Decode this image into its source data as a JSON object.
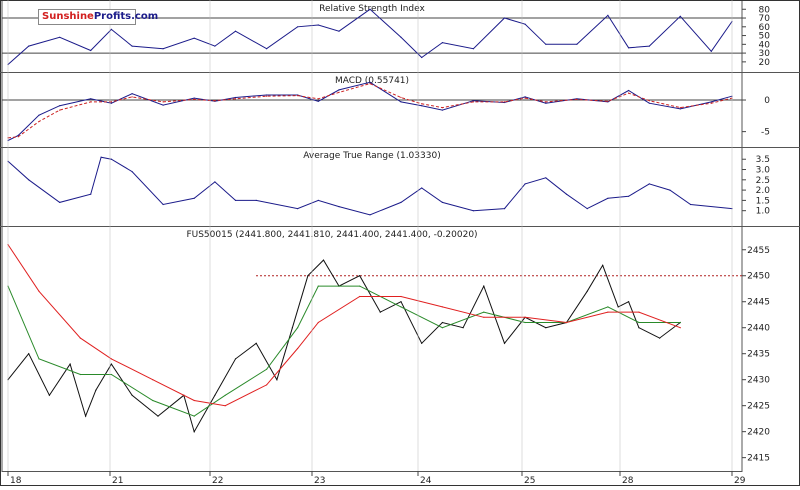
{
  "brand": {
    "part1": "Sunshine",
    "part2": "Profits.com"
  },
  "chart_data": [
    {
      "type": "line",
      "title": "Relative Strength Index",
      "ylim": [
        13,
        86
      ],
      "y_ticks": [
        20,
        30,
        40,
        50,
        60,
        70,
        80
      ],
      "reference_lines": [
        30,
        70
      ],
      "series": [
        {
          "color": "#1b1b8a",
          "x": [
            0,
            0.2,
            0.5,
            0.8,
            1,
            1.2,
            1.5,
            1.8,
            2,
            2.2,
            2.5,
            2.8,
            3,
            3.2,
            3.5,
            3.8,
            4,
            4.2,
            4.5,
            4.8,
            5,
            5.2,
            5.5,
            5.8,
            6,
            6.2,
            6.5,
            6.8,
            7
          ],
          "values": [
            17,
            38,
            48,
            33,
            57,
            38,
            35,
            47,
            38,
            55,
            35,
            60,
            62,
            55,
            80,
            48,
            25,
            42,
            35,
            70,
            63,
            40,
            40,
            73,
            36,
            38,
            72,
            32,
            66
          ]
        }
      ]
    },
    {
      "type": "line",
      "title": "MACD (0.55741)",
      "ylim": [
        -6.8,
        3.8
      ],
      "y_ticks": [
        0,
        -5
      ],
      "reference_lines": [
        0
      ],
      "series": [
        {
          "color": "#1b1b8a",
          "x": [
            0,
            0.1,
            0.3,
            0.5,
            0.8,
            1,
            1.2,
            1.5,
            1.8,
            2,
            2.2,
            2.5,
            2.8,
            3,
            3.2,
            3.5,
            3.8,
            4,
            4.2,
            4.5,
            4.8,
            5,
            5.2,
            5.5,
            5.8,
            6,
            6.2,
            6.5,
            6.8,
            7
          ],
          "values": [
            -6.4,
            -5.6,
            -2.4,
            -0.9,
            0.2,
            -0.5,
            1,
            -0.8,
            0.3,
            -0.2,
            0.4,
            0.8,
            0.8,
            -0.2,
            1.6,
            2.8,
            -0.3,
            -0.9,
            -1.6,
            -0.1,
            -0.4,
            0.5,
            -0.5,
            0.2,
            -0.3,
            1.5,
            -0.5,
            -1.4,
            -0.3,
            0.6
          ]
        },
        {
          "color": "#cc2222",
          "x": [
            0,
            0.1,
            0.3,
            0.5,
            0.8,
            1,
            1.2,
            1.5,
            1.8,
            2,
            2.2,
            2.5,
            2.8,
            3,
            3.2,
            3.5,
            3.8,
            4,
            4.2,
            4.5,
            4.8,
            5,
            5.2,
            5.5,
            5.8,
            6,
            6.2,
            6.5,
            6.8,
            7
          ],
          "values": [
            -6,
            -5.8,
            -3.4,
            -1.6,
            -0.3,
            -0.3,
            0.5,
            -0.3,
            0.1,
            -0.1,
            0.2,
            0.6,
            0.7,
            0.2,
            1.2,
            2.6,
            0.4,
            -0.6,
            -1.2,
            -0.3,
            -0.3,
            0.3,
            -0.3,
            0.1,
            -0.2,
            1.1,
            -0.1,
            -1.2,
            -0.5,
            0.3
          ]
        }
      ]
    },
    {
      "type": "line",
      "title": "Average True Range (1.03330)",
      "ylim": [
        0.45,
        3.9
      ],
      "y_ticks": [
        1.0,
        1.5,
        2.0,
        2.5,
        3.0,
        3.5
      ],
      "series": [
        {
          "color": "#1b1b8a",
          "x": [
            0,
            0.2,
            0.5,
            0.8,
            0.9,
            1,
            1.2,
            1.5,
            1.8,
            2,
            2.2,
            2.4,
            2.8,
            3,
            3.2,
            3.5,
            3.8,
            4,
            4.2,
            4.5,
            4.8,
            5,
            5.2,
            5.4,
            5.6,
            5.8,
            6,
            6.2,
            6.4,
            6.6,
            7
          ],
          "values": [
            3.4,
            2.5,
            1.4,
            1.8,
            3.6,
            3.5,
            2.9,
            1.3,
            1.6,
            2.4,
            1.5,
            1.5,
            1.1,
            1.5,
            1.2,
            0.8,
            1.4,
            2.1,
            1.4,
            1.0,
            1.1,
            2.3,
            2.6,
            1.8,
            1.1,
            1.6,
            1.7,
            2.3,
            2.0,
            1.3,
            1.1
          ]
        }
      ]
    },
    {
      "type": "line",
      "title": "FUS50015 (2441.800, 2441.810, 2441.400, 2441.400, -0.20020)",
      "ylim": [
        2413.2,
        2458.8
      ],
      "y_ticks": [
        2415,
        2420,
        2425,
        2430,
        2435,
        2440,
        2445,
        2450,
        2455
      ],
      "categories": [
        "18",
        "21",
        "22",
        "23",
        "24",
        "25",
        "28",
        "29"
      ],
      "resistance_level": 2450,
      "series": [
        {
          "color": "#111111",
          "x": [
            0,
            0.2,
            0.4,
            0.6,
            0.75,
            0.85,
            1,
            1.2,
            1.45,
            1.7,
            1.8,
            2,
            2.2,
            2.4,
            2.6,
            2.75,
            2.9,
            3.05,
            3.2,
            3.4,
            3.6,
            3.8,
            4,
            4.2,
            4.4,
            4.6,
            4.8,
            5,
            5.2,
            5.4,
            5.6,
            5.75,
            5.9,
            6,
            6.1,
            6.3,
            6.5
          ],
          "values": [
            2430,
            2435,
            2427,
            2433,
            2423,
            2428,
            2433,
            2427,
            2423,
            2427,
            2420,
            2427,
            2434,
            2437,
            2430,
            2440,
            2450,
            2453,
            2448,
            2450,
            2443,
            2445,
            2437,
            2441,
            2440,
            2448,
            2437,
            2442,
            2440,
            2441,
            2447,
            2452,
            2444,
            2445,
            2440,
            2438,
            2441
          ]
        },
        {
          "color": "#2a8a2a",
          "x": [
            0,
            0.3,
            0.7,
            1,
            1.4,
            1.8,
            2.1,
            2.5,
            2.8,
            3,
            3.4,
            3.8,
            4.2,
            4.6,
            5,
            5.4,
            5.8,
            6.1,
            6.5
          ],
          "values": [
            2448,
            2434,
            2431,
            2431,
            2426,
            2423,
            2427,
            2432,
            2440,
            2448,
            2448,
            2444,
            2440,
            2443,
            2441,
            2441,
            2444,
            2441,
            2441
          ]
        },
        {
          "color": "#e02020",
          "x": [
            0,
            0.3,
            0.7,
            1,
            1.4,
            1.8,
            2.1,
            2.5,
            2.8,
            3,
            3.4,
            3.8,
            4.2,
            4.6,
            5,
            5.4,
            5.8,
            6.1,
            6.5
          ],
          "values": [
            2456,
            2447,
            2438,
            2434,
            2430,
            2426,
            2425,
            2429,
            2436,
            2441,
            2446,
            2446,
            2444,
            2442,
            2442,
            2441,
            2443,
            2443,
            2440
          ]
        }
      ]
    }
  ]
}
